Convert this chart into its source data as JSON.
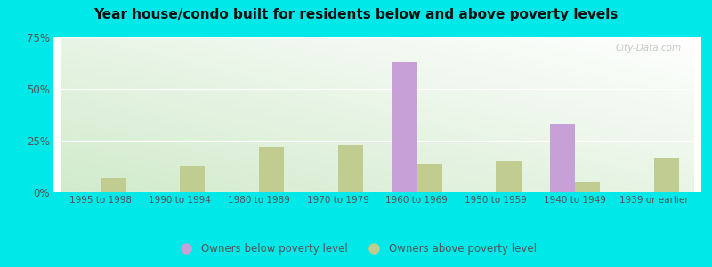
{
  "title": "Year house/condo built for residents below and above poverty levels",
  "categories": [
    "1995 to 1998",
    "1990 to 1994",
    "1980 to 1989",
    "1970 to 1979",
    "1960 to 1969",
    "1950 to 1959",
    "1940 to 1949",
    "1939 or earlier"
  ],
  "below_poverty": [
    0,
    0,
    0,
    0,
    63,
    0,
    33,
    0
  ],
  "above_poverty": [
    7,
    13,
    22,
    23,
    14,
    15,
    5,
    17
  ],
  "below_color": "#c8a0d8",
  "above_color": "#c0cc90",
  "ylim": [
    0,
    75
  ],
  "yticks": [
    0,
    25,
    50,
    75
  ],
  "ytick_labels": [
    "0%",
    "25%",
    "50%",
    "75%"
  ],
  "outer_background": "#00e8e8",
  "legend_below": "Owners below poverty level",
  "legend_above": "Owners above poverty level",
  "title_fontsize": 11,
  "bar_width": 0.32,
  "watermark": "City-Data.com"
}
